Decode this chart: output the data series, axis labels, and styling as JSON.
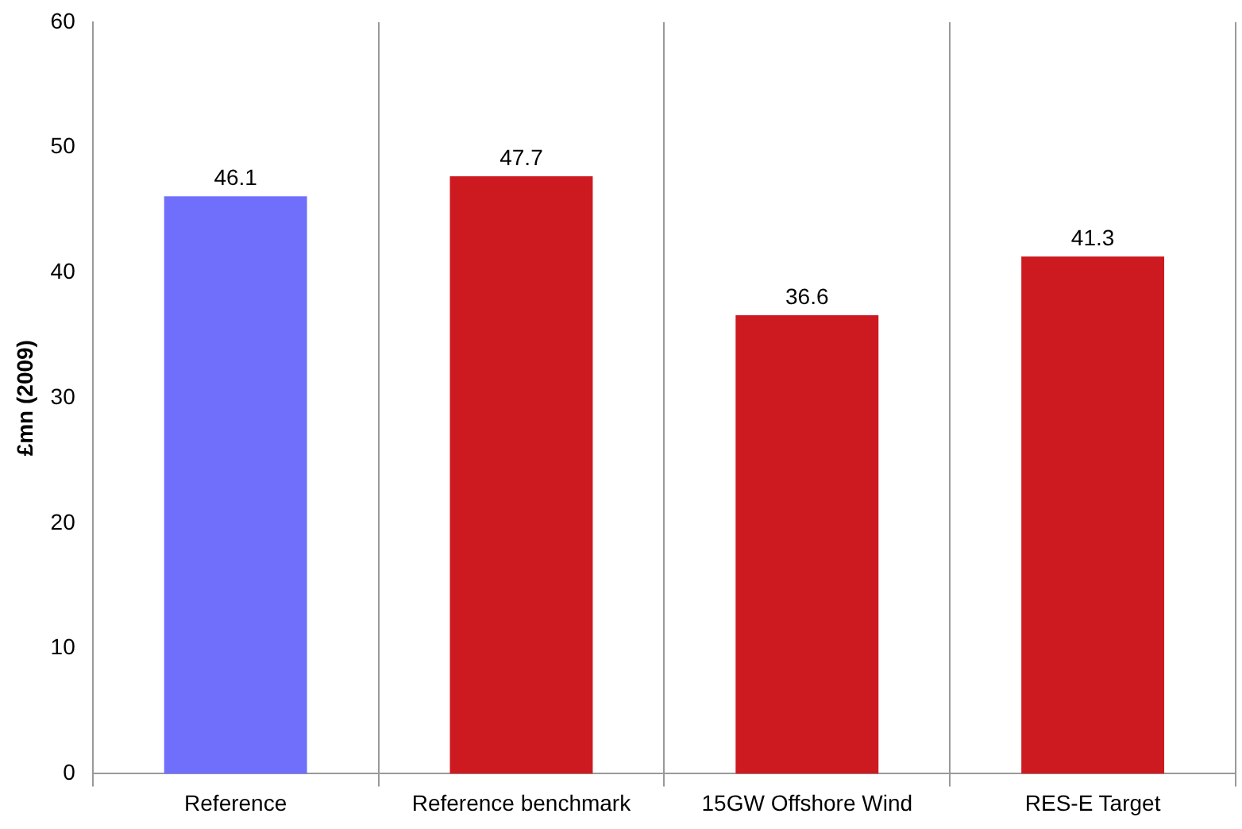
{
  "chart_data": {
    "type": "bar",
    "ylabel": "£mn (2009)",
    "categories": [
      "Reference",
      "Reference benchmark",
      "15GW Offshore Wind",
      "RES-E Target"
    ],
    "values": [
      46.1,
      47.7,
      36.6,
      41.3
    ],
    "colors": [
      "#6f6ffc",
      "#cc1a20",
      "#cc1a20",
      "#cc1a20"
    ],
    "ylim": [
      0,
      60
    ],
    "yticks": [
      0,
      10,
      20,
      30,
      40,
      50,
      60
    ],
    "grid": "x",
    "data_labels": true
  }
}
